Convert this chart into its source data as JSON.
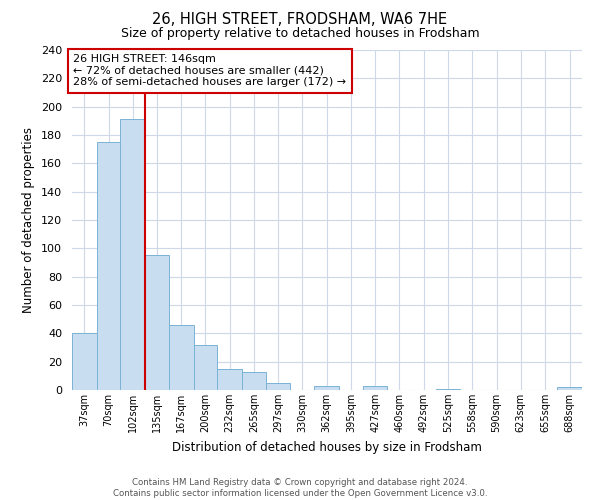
{
  "title": "26, HIGH STREET, FRODSHAM, WA6 7HE",
  "subtitle": "Size of property relative to detached houses in Frodsham",
  "xlabel": "Distribution of detached houses by size in Frodsham",
  "ylabel": "Number of detached properties",
  "bar_labels": [
    "37sqm",
    "70sqm",
    "102sqm",
    "135sqm",
    "167sqm",
    "200sqm",
    "232sqm",
    "265sqm",
    "297sqm",
    "330sqm",
    "362sqm",
    "395sqm",
    "427sqm",
    "460sqm",
    "492sqm",
    "525sqm",
    "558sqm",
    "590sqm",
    "623sqm",
    "655sqm",
    "688sqm"
  ],
  "bar_values": [
    40,
    175,
    191,
    95,
    46,
    32,
    15,
    13,
    5,
    0,
    3,
    0,
    3,
    0,
    0,
    1,
    0,
    0,
    0,
    0,
    2
  ],
  "bar_color": "#c9ddf0",
  "bar_edge_color": "#7ab3d4",
  "ylim": [
    0,
    240
  ],
  "yticks": [
    0,
    20,
    40,
    60,
    80,
    100,
    120,
    140,
    160,
    180,
    200,
    220,
    240
  ],
  "property_line_color": "#cc0000",
  "annotation_text_line1": "26 HIGH STREET: 146sqm",
  "annotation_text_line2": "← 72% of detached houses are smaller (442)",
  "annotation_text_line3": "28% of semi-detached houses are larger (172) →",
  "annotation_box_color": "#cc0000",
  "footer_line1": "Contains HM Land Registry data © Crown copyright and database right 2024.",
  "footer_line2": "Contains public sector information licensed under the Open Government Licence v3.0.",
  "bg_color": "#ffffff",
  "grid_color": "#cdd8e8"
}
